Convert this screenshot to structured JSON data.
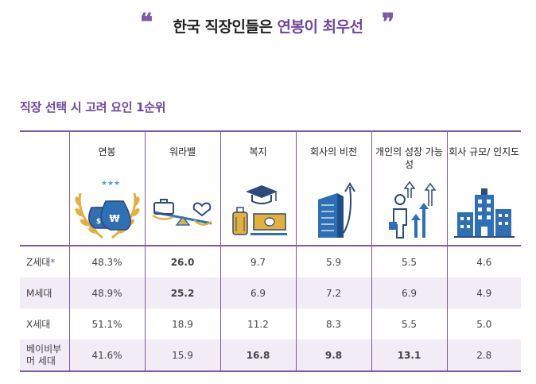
{
  "header": {
    "title_main": "한국 직장인들은 ",
    "title_accent": "연봉이 최우선",
    "quote_open": "❝",
    "quote_close": "❞"
  },
  "subtitle": "직장 선택 시 고려 요인 1순위",
  "columns": [
    {
      "label": "연봉",
      "icon": "money-bags-icon"
    },
    {
      "label": "워라밸",
      "icon": "balance-scale-icon"
    },
    {
      "label": "복지",
      "icon": "graduation-luggage-icon"
    },
    {
      "label": "회사의 비전",
      "icon": "building-arrow-icon"
    },
    {
      "label": "개인의 성장 가능성",
      "icon": "person-growth-icon"
    },
    {
      "label": "회사 규모/ 인지도",
      "icon": "buildings-icon"
    }
  ],
  "rows": [
    {
      "label": "Z세대",
      "star": "*",
      "values": [
        "48.3%",
        "26.0",
        "9.7",
        "5.9",
        "5.5",
        "4.6"
      ],
      "highlight": [
        false,
        true,
        false,
        false,
        false,
        false
      ]
    },
    {
      "label": "M세대",
      "star": "",
      "values": [
        "48.9%",
        "25.2",
        "6.9",
        "7.2",
        "6.9",
        "4.9"
      ],
      "highlight": [
        false,
        true,
        false,
        false,
        false,
        false
      ]
    },
    {
      "label": "X세대",
      "star": "",
      "values": [
        "51.1%",
        "18.9",
        "11.2",
        "8.3",
        "5.5",
        "5.0"
      ],
      "highlight": [
        false,
        false,
        false,
        false,
        false,
        false
      ]
    },
    {
      "label": "베이비부머 세대",
      "star": "",
      "values": [
        "41.6%",
        "15.9",
        "16.8",
        "9.8",
        "13.1",
        "2.8"
      ],
      "highlight": [
        false,
        false,
        true,
        true,
        true,
        false
      ]
    }
  ],
  "colors": {
    "accent": "#6e46a0",
    "border": "#7b5aa6",
    "highlight": "#d8533c",
    "shade": "#f1ecf5",
    "icon_blue": "#2e6fb5",
    "icon_gold": "#e3b13b"
  }
}
